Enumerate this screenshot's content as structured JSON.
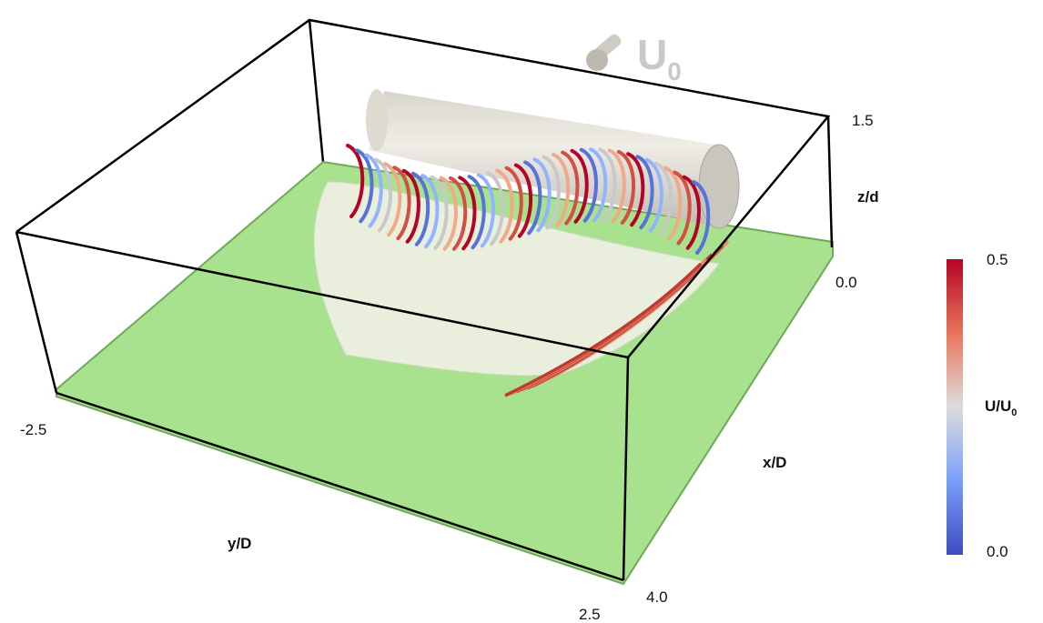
{
  "flow_label": {
    "main": "U",
    "sub": "0"
  },
  "axes": {
    "z": {
      "label": "z/d",
      "top": "1.5",
      "bottom": "0.0"
    },
    "x": {
      "label": "x/D",
      "end": "4.0"
    },
    "y": {
      "label": "y/D",
      "start": "-2.5",
      "end": "2.5"
    }
  },
  "colorbar": {
    "max": "0.5",
    "min": "0.0",
    "title": {
      "main": "U/U",
      "sub": "0"
    }
  }
}
